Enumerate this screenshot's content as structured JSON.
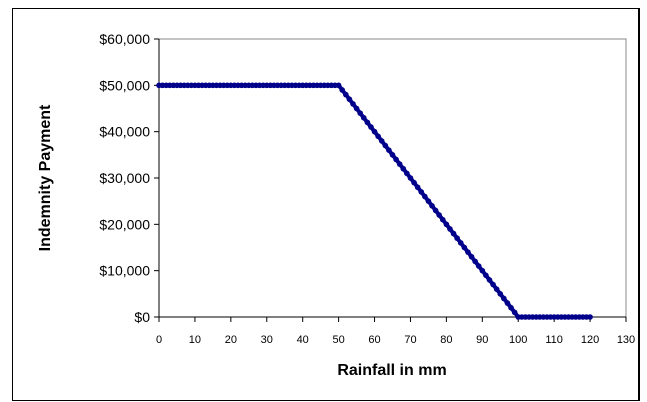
{
  "chart_data": {
    "type": "line",
    "title": "",
    "xlabel": "Rainfall in mm",
    "ylabel": "Indemnity Payment",
    "xlim": [
      0,
      130
    ],
    "ylim": [
      0,
      60000
    ],
    "x_ticks": [
      "0",
      "10",
      "20",
      "30",
      "40",
      "50",
      "60",
      "70",
      "80",
      "90",
      "100",
      "110",
      "120",
      "130"
    ],
    "y_ticks": [
      "$0",
      "$10,000",
      "$20,000",
      "$30,000",
      "$40,000",
      "$50,000",
      "$60,000"
    ],
    "grid": false,
    "legend": "none",
    "series": [
      {
        "color": "#00008B",
        "marker": "circle",
        "x": [
          0,
          50,
          100,
          120
        ],
        "y": [
          50000,
          50000,
          0,
          0
        ],
        "marker_step": 1
      }
    ]
  }
}
